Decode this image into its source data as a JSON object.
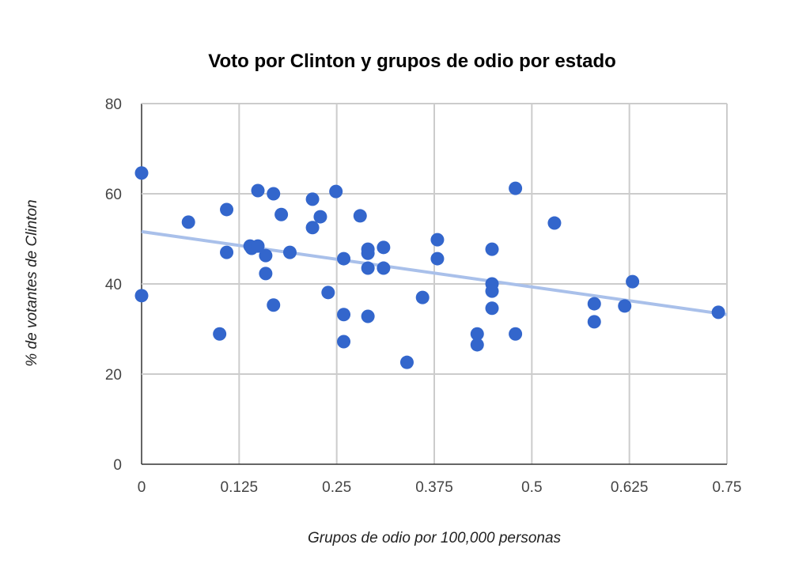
{
  "chart_data": {
    "type": "scatter",
    "title": "Voto por Clinton y grupos de odio por estado",
    "xlabel": "Grupos de odio por 100,000 personas",
    "ylabel": "% de votantes de Clinton",
    "xlim": [
      0,
      0.75
    ],
    "ylim": [
      0,
      80
    ],
    "x_ticks": [
      "0",
      "0.125",
      "0.25",
      "0.375",
      "0.5",
      "0.625",
      "0.75"
    ],
    "y_ticks": [
      "0",
      "20",
      "40",
      "60",
      "80"
    ],
    "grid": true,
    "point_color": "#3366cc",
    "trendline": {
      "type": "linear",
      "color": "#a9c0ea",
      "x": [
        0,
        0.75
      ],
      "y": [
        51.6,
        33.2
      ]
    },
    "points": [
      [
        0,
        64.6
      ],
      [
        0,
        37.4
      ],
      [
        0.06,
        53.7
      ],
      [
        0.1,
        28.9
      ],
      [
        0.109,
        56.5
      ],
      [
        0.109,
        47.0
      ],
      [
        0.139,
        48.4
      ],
      [
        0.141,
        47.9
      ],
      [
        0.149,
        60.7
      ],
      [
        0.149,
        48.4
      ],
      [
        0.159,
        46.3
      ],
      [
        0.159,
        42.3
      ],
      [
        0.169,
        60.0
      ],
      [
        0.169,
        35.3
      ],
      [
        0.179,
        55.4
      ],
      [
        0.19,
        47.0
      ],
      [
        0.219,
        58.8
      ],
      [
        0.219,
        52.5
      ],
      [
        0.229,
        54.9
      ],
      [
        0.239,
        38.1
      ],
      [
        0.249,
        60.5
      ],
      [
        0.259,
        45.6
      ],
      [
        0.259,
        33.2
      ],
      [
        0.259,
        27.2
      ],
      [
        0.28,
        55.1
      ],
      [
        0.29,
        47.7
      ],
      [
        0.29,
        46.8
      ],
      [
        0.29,
        43.5
      ],
      [
        0.29,
        32.8
      ],
      [
        0.31,
        48.1
      ],
      [
        0.31,
        43.5
      ],
      [
        0.34,
        22.6
      ],
      [
        0.36,
        37.0
      ],
      [
        0.379,
        49.8
      ],
      [
        0.379,
        45.6
      ],
      [
        0.43,
        28.9
      ],
      [
        0.43,
        26.5
      ],
      [
        0.449,
        47.7
      ],
      [
        0.449,
        40.0
      ],
      [
        0.449,
        38.4
      ],
      [
        0.449,
        34.6
      ],
      [
        0.479,
        61.2
      ],
      [
        0.479,
        28.9
      ],
      [
        0.529,
        53.5
      ],
      [
        0.58,
        35.6
      ],
      [
        0.58,
        31.6
      ],
      [
        0.619,
        35.1
      ],
      [
        0.629,
        40.5
      ],
      [
        0.739,
        33.7
      ]
    ]
  }
}
